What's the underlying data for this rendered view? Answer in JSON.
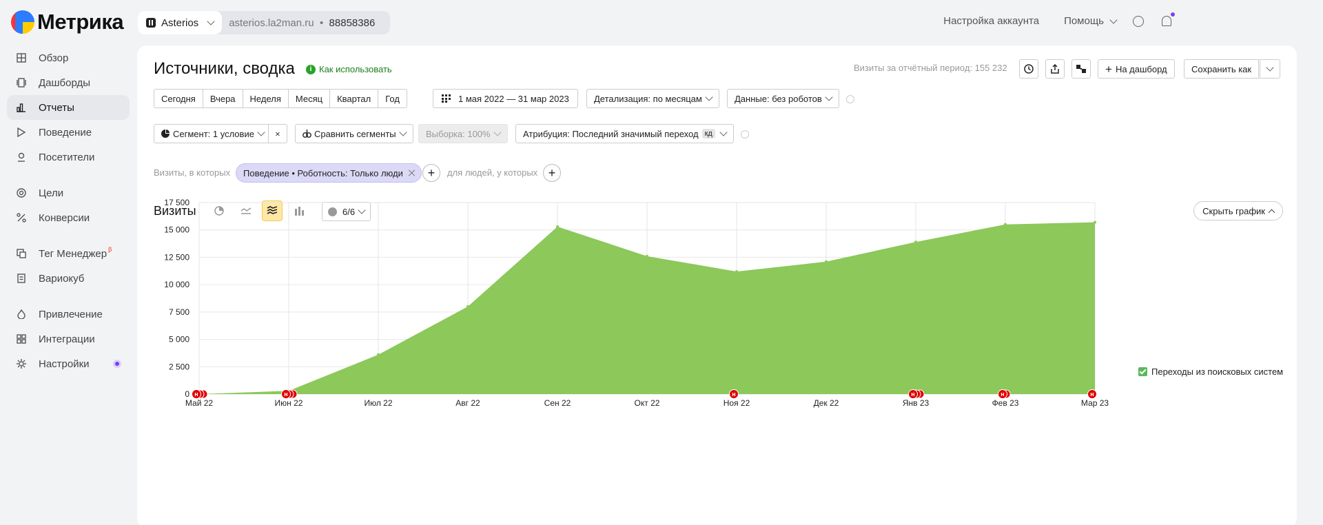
{
  "header": {
    "logo_text": "Метрика",
    "counter_name": "Asterios",
    "counter_site": "asterios.la2man.ru",
    "counter_separator": "•",
    "counter_id": "88858386",
    "account_settings": "Настройка аккаунта",
    "help": "Помощь"
  },
  "sidebar": {
    "items": [
      {
        "label": "Обзор",
        "icon": "grid-icon"
      },
      {
        "label": "Дашборды",
        "icon": "dashboards-icon"
      },
      {
        "label": "Отчеты",
        "icon": "bar-chart-icon",
        "active": true
      },
      {
        "label": "Поведение",
        "icon": "play-icon"
      },
      {
        "label": "Посетители",
        "icon": "user-icon"
      },
      {
        "label": "Цели",
        "icon": "target-icon"
      },
      {
        "label": "Конверсии",
        "icon": "percent-icon"
      },
      {
        "label": "Тег Менеджер",
        "icon": "tag-manager-icon",
        "badge": "β"
      },
      {
        "label": "Вариокуб",
        "icon": "variocube-icon"
      },
      {
        "label": "Привлечение",
        "icon": "flame-icon"
      },
      {
        "label": "Интеграции",
        "icon": "integrations-icon"
      },
      {
        "label": "Настройки",
        "icon": "gear-icon"
      }
    ]
  },
  "report": {
    "title": "Источники, сводка",
    "howto": "Как использовать",
    "visits_total": "Визиты за отчётный период: 155 232",
    "to_dashboard": "На дашборд",
    "save_as": "Сохранить как",
    "periods": [
      "Сегодня",
      "Вчера",
      "Неделя",
      "Месяц",
      "Квартал",
      "Год"
    ],
    "date_range": "1 мая 2022 — 31 мар 2023",
    "detalization": "Детализация: по месяцам",
    "data_filter": "Данные: без роботов",
    "segment": "Сегмент: 1 условие",
    "compare_segments": "Сравнить сегменты",
    "sample": "Выборка: 100%",
    "attribution": "Атрибуция: Последний значимый переход",
    "attribution_badge": "кд",
    "visits_where": "Визиты, в которых",
    "condition_chip": "Поведение • Роботность: Только люди",
    "for_people": "для людей, у которых"
  },
  "chart_panel": {
    "title": "Визиты",
    "series_count": "6/6",
    "hide_graph": "Скрыть график",
    "legend_label": "Переходы из поисковых систем"
  },
  "colors": {
    "area": "#8cc85a",
    "marker": "#e00000",
    "accent_active": "#ffe8a5"
  },
  "chart_data": {
    "type": "area",
    "categories": [
      "Май 22",
      "Июн 22",
      "Июл 22",
      "Авг 22",
      "Сен 22",
      "Окт 22",
      "Ноя 22",
      "Дек 22",
      "Янв 23",
      "Фев 23",
      "Мар 23"
    ],
    "series": [
      {
        "name": "Переходы из поисковых систем",
        "values": [
          0,
          300,
          3600,
          8000,
          15300,
          12600,
          11200,
          12100,
          13900,
          15500,
          15700
        ]
      }
    ],
    "yticks": [
      0,
      2500,
      5000,
      7500,
      10000,
      12500,
      15000,
      17500
    ],
    "ytick_labels": [
      "0",
      "2 500",
      "5 000",
      "7 500",
      "10 000",
      "12 500",
      "15 000",
      "17 500"
    ],
    "ylim": [
      0,
      17500
    ],
    "grid": true,
    "legend_position": "right",
    "annotations": [
      {
        "x": "Май 22",
        "label": "н"
      },
      {
        "x": "Июн 22",
        "label": "н"
      },
      {
        "x": "Ноя 22",
        "label": "н"
      },
      {
        "x": "Янв 23",
        "label": "н"
      },
      {
        "x": "Фев 23",
        "label": "н"
      },
      {
        "x": "Мар 23",
        "label": "н"
      }
    ]
  }
}
